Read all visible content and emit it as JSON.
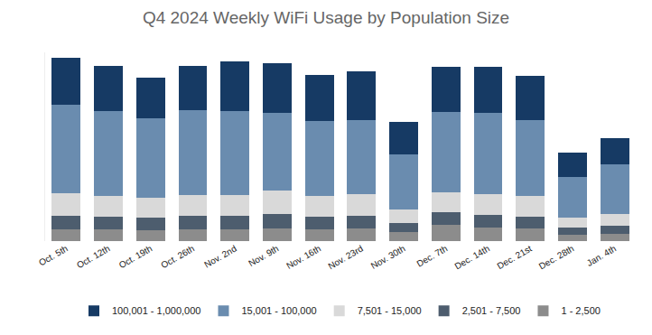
{
  "chart_data": {
    "type": "bar",
    "stacked": true,
    "title": "Q4 2024 Weekly WiFi Usage by Population Size",
    "categories": [
      "Oct. 5th",
      "Oct. 12th",
      "Oct. 19th",
      "Oct. 26th",
      "Nov. 2nd",
      "Nov. 9th",
      "Nov. 16th",
      "Nov. 23rd",
      "Nov. 30th",
      "Dec. 7th",
      "Dec. 14th",
      "Dec. 21st",
      "Dec. 28th",
      "Jan. 4th"
    ],
    "series": [
      {
        "name": "100,001 - 1,000,000",
        "color": "#163a64",
        "values": [
          57,
          54,
          49,
          53,
          60,
          61,
          56,
          59,
          39,
          55,
          56,
          54,
          30,
          32
        ]
      },
      {
        "name": "15,001 - 100,000",
        "color": "#6a8caf",
        "values": [
          108,
          104,
          97,
          104,
          103,
          94,
          91,
          91,
          67,
          98,
          99,
          92,
          49,
          60
        ]
      },
      {
        "name": "7,501 - 15,000",
        "color": "#d9d9d9",
        "values": [
          27,
          25,
          24,
          25,
          25,
          29,
          25,
          26,
          17,
          24,
          25,
          25,
          12,
          14
        ]
      },
      {
        "name": "2,501 - 7,500",
        "color": "#4d5d6e",
        "values": [
          17,
          16,
          16,
          17,
          17,
          18,
          16,
          16,
          11,
          15,
          15,
          15,
          9,
          10
        ]
      },
      {
        "name": "1 - 2,500",
        "color": "#8c8c8c",
        "values": [
          14,
          14,
          13,
          14,
          14,
          15,
          14,
          15,
          11,
          20,
          17,
          15,
          8,
          9
        ]
      }
    ],
    "ylim": [
      0,
      230
    ],
    "grid": false,
    "legend": "bottom",
    "tick_labels": "x"
  }
}
